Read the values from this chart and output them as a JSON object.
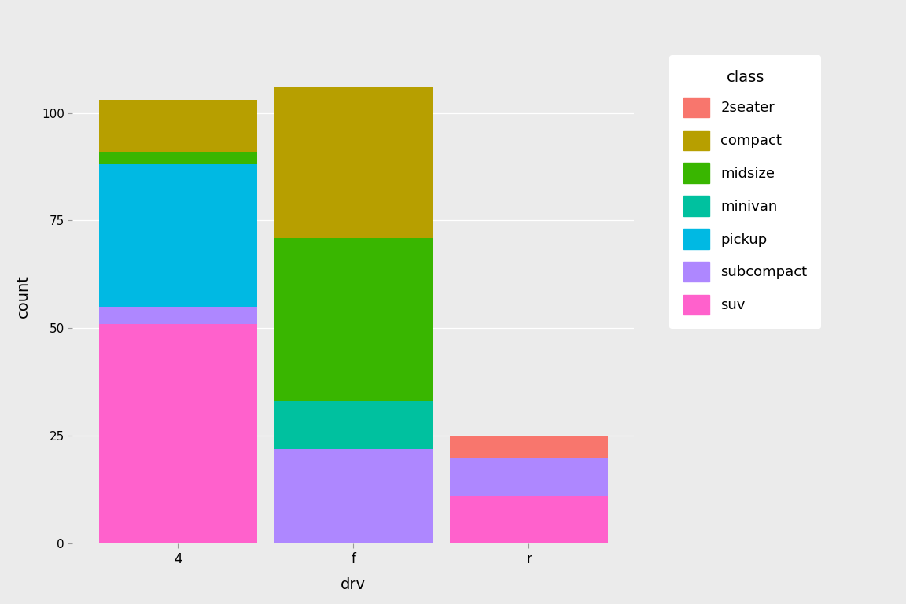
{
  "categories": [
    "4",
    "f",
    "r"
  ],
  "colors": {
    "suv": "#FF61CC",
    "subcompact": "#AE87FF",
    "pickup": "#00B9E3",
    "minivan": "#00C19F",
    "midsize": "#39B600",
    "compact": "#B79F00",
    "2seater": "#F8766D"
  },
  "data": {
    "4": {
      "suv": 51,
      "subcompact": 4,
      "pickup": 33,
      "minivan": 0,
      "midsize": 3,
      "compact": 12,
      "2seater": 0
    },
    "f": {
      "suv": 0,
      "subcompact": 22,
      "pickup": 0,
      "minivan": 11,
      "midsize": 38,
      "compact": 35,
      "2seater": 0
    },
    "r": {
      "suv": 11,
      "subcompact": 9,
      "pickup": 0,
      "minivan": 0,
      "midsize": 0,
      "compact": 0,
      "2seater": 5
    }
  },
  "xlabel": "drv",
  "ylabel": "count",
  "legend_title": "class",
  "legend_order": [
    "2seater",
    "compact",
    "midsize",
    "minivan",
    "pickup",
    "subcompact",
    "suv"
  ],
  "background_color": "#EBEBEB",
  "grid_color": "#FFFFFF",
  "ylim": [
    0,
    115
  ],
  "yticks": [
    0,
    25,
    50,
    75,
    100
  ],
  "bar_width": 0.9,
  "stack_order": [
    "suv",
    "subcompact",
    "pickup",
    "minivan",
    "midsize",
    "compact",
    "2seater"
  ]
}
